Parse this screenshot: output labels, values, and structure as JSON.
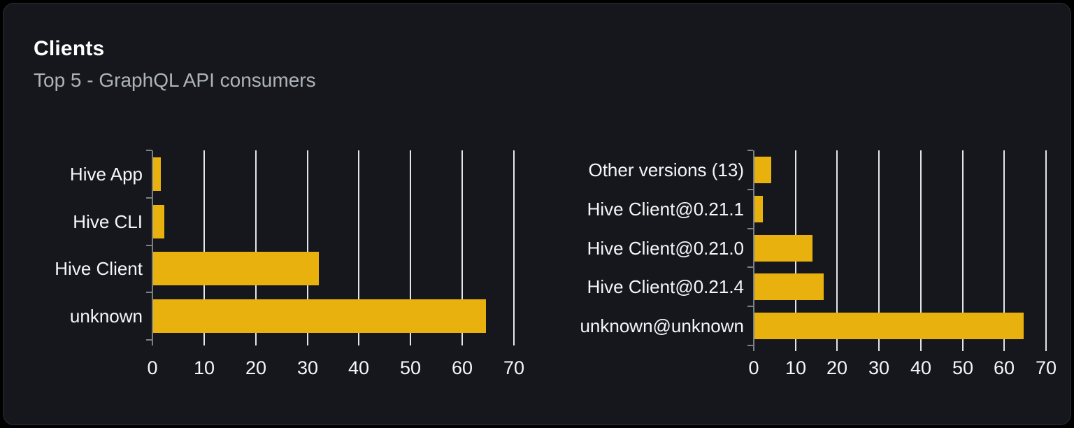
{
  "card": {
    "title": "Clients",
    "subtitle": "Top 5 - GraphQL API consumers"
  },
  "colors": {
    "page_bg": "#000000",
    "card_bg": "#15171c",
    "card_border": "#2a2d33",
    "title": "#ffffff",
    "subtitle": "#aeb3bb",
    "bar": "#e9b10e",
    "gridline": "#e2e5ee",
    "axis": "#7b8087",
    "tick_label": "#f5f6f8"
  },
  "chart_data": [
    {
      "type": "bar",
      "orientation": "horizontal",
      "title": "Clients by name",
      "categories": [
        "Hive App",
        "Hive CLI",
        "Hive Client",
        "unknown"
      ],
      "values": [
        1.5,
        2.2,
        32.1,
        64.4
      ],
      "xlim": [
        0,
        70
      ],
      "xticks": [
        0,
        10,
        20,
        30,
        40,
        50,
        60,
        70
      ],
      "grid": true,
      "legend_position": "none"
    },
    {
      "type": "bar",
      "orientation": "horizontal",
      "title": "Clients by version",
      "categories": [
        "Other versions (13)",
        "Hive Client@0.21.1",
        "Hive Client@0.21.0",
        "Hive Client@0.21.4",
        "unknown@unknown"
      ],
      "values": [
        4.1,
        2.0,
        13.9,
        16.5,
        64.4
      ],
      "xlim": [
        0,
        70
      ],
      "xticks": [
        0,
        10,
        20,
        30,
        40,
        50,
        60,
        70
      ],
      "grid": true,
      "legend_position": "none"
    }
  ]
}
